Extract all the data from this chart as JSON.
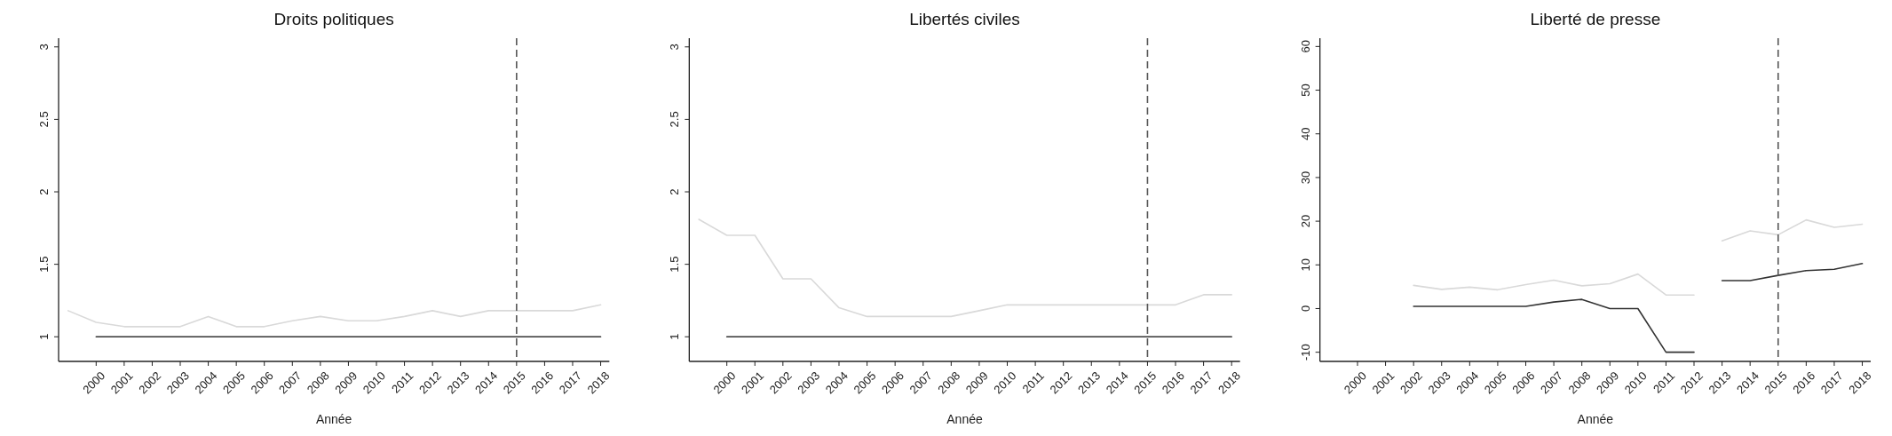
{
  "chart_data": [
    {
      "type": "line",
      "title": "Droits politiques",
      "xlabel": "Année",
      "xlim": [
        1998.66,
        2018.31
      ],
      "xticks": [
        2000,
        2001,
        2002,
        2003,
        2004,
        2005,
        2006,
        2007,
        2008,
        2009,
        2010,
        2011,
        2012,
        2013,
        2014,
        2015,
        2016,
        2017,
        2018
      ],
      "ylim": [
        0.83,
        3.06
      ],
      "yticks": [
        1,
        1.5,
        2,
        2.5,
        3
      ],
      "grid": false,
      "series": [
        {
          "color": "#d9d9d9",
          "x": [
            1999,
            2000,
            2001,
            2002,
            2003,
            2004,
            2005,
            2006,
            2007,
            2008,
            2009,
            2010,
            2011,
            2012,
            2013,
            2014,
            2015,
            2016,
            2017,
            2018
          ],
          "values": [
            1.18,
            1.1,
            1.07,
            1.07,
            1.07,
            1.14,
            1.07,
            1.07,
            1.11,
            1.14,
            1.11,
            1.11,
            1.14,
            1.18,
            1.14,
            1.18,
            1.18,
            1.18,
            1.18,
            1.22
          ]
        },
        {
          "color": "#333333",
          "x": [
            2000,
            2001,
            2002,
            2003,
            2004,
            2005,
            2006,
            2007,
            2008,
            2009,
            2010,
            2011,
            2012,
            2013,
            2014,
            2015,
            2016,
            2017,
            2018
          ],
          "values": [
            1,
            1,
            1,
            1,
            1,
            1,
            1,
            1,
            1,
            1,
            1,
            1,
            1,
            1,
            1,
            1,
            1,
            1,
            1
          ]
        }
      ],
      "ref_lines": [
        {
          "axis": "x",
          "value": 2015,
          "color": "#555555",
          "line_style": "dashed"
        }
      ]
    },
    {
      "type": "line",
      "title": "Libertés civiles",
      "xlabel": "Année",
      "xlim": [
        1998.66,
        2018.3
      ],
      "xticks": [
        2000,
        2001,
        2002,
        2003,
        2004,
        2005,
        2006,
        2007,
        2008,
        2009,
        2010,
        2011,
        2012,
        2013,
        2014,
        2015,
        2016,
        2017,
        2018
      ],
      "ylim": [
        0.83,
        3.06
      ],
      "yticks": [
        1,
        1.5,
        2,
        2.5,
        3
      ],
      "grid": false,
      "series": [
        {
          "color": "#d9d9d9",
          "x": [
            1999,
            2000,
            2001,
            2002,
            2003,
            2004,
            2005,
            2006,
            2007,
            2008,
            2009,
            2010,
            2011,
            2012,
            2013,
            2014,
            2015,
            2016,
            2017,
            2018
          ],
          "values": [
            1.81,
            1.7,
            1.7,
            1.4,
            1.4,
            1.2,
            1.14,
            1.14,
            1.14,
            1.14,
            1.18,
            1.22,
            1.22,
            1.22,
            1.22,
            1.22,
            1.22,
            1.22,
            1.29,
            1.29
          ]
        },
        {
          "color": "#333333",
          "x": [
            2000,
            2001,
            2002,
            2003,
            2004,
            2005,
            2006,
            2007,
            2008,
            2009,
            2010,
            2011,
            2012,
            2013,
            2014,
            2015,
            2016,
            2017,
            2018
          ],
          "values": [
            1,
            1,
            1,
            1,
            1,
            1,
            1,
            1,
            1,
            1,
            1,
            1,
            1,
            1,
            1,
            1,
            1,
            1,
            1
          ]
        }
      ],
      "ref_lines": [
        {
          "axis": "x",
          "value": 2015,
          "color": "#555555",
          "line_style": "dashed"
        }
      ]
    },
    {
      "type": "line",
      "title": "Liberté de presse",
      "xlabel": "Année",
      "xlim": [
        1998.66,
        2018.3
      ],
      "xticks": [
        2000,
        2001,
        2002,
        2003,
        2004,
        2005,
        2006,
        2007,
        2008,
        2009,
        2010,
        2011,
        2012,
        2013,
        2014,
        2015,
        2016,
        2017,
        2018
      ],
      "ylim": [
        -12.1,
        61.9
      ],
      "yticks": [
        -10,
        0,
        10,
        20,
        30,
        40,
        50,
        60
      ],
      "grid": false,
      "series": [
        {
          "color": "#d9d9d9",
          "x": [
            2002,
            2003,
            2004,
            2005,
            2006,
            2007,
            2008,
            2009,
            2010,
            2011,
            2012,
            2012.5,
            2013,
            2014,
            2015,
            2016,
            2017,
            2018
          ],
          "values": [
            5.3,
            4.4,
            4.9,
            4.3,
            5.5,
            6.5,
            5.2,
            5.7,
            7.9,
            3.1,
            3.1,
            null,
            15.5,
            17.8,
            16.9,
            20.3,
            18.6,
            19.3
          ]
        },
        {
          "color": "#333333",
          "x": [
            2002,
            2003,
            2004,
            2005,
            2006,
            2007,
            2008,
            2009,
            2010,
            2011,
            2012,
            2012.5,
            2013,
            2014,
            2015,
            2016,
            2017,
            2018
          ],
          "values": [
            0.5,
            0.5,
            0.5,
            0.5,
            0.5,
            1.5,
            2.1,
            0,
            0,
            -10,
            -10,
            null,
            6.4,
            6.4,
            7.6,
            8.7,
            9.0,
            10.3
          ]
        }
      ],
      "ref_lines": [
        {
          "axis": "x",
          "value": 2015,
          "color": "#555555",
          "line_style": "dashed"
        }
      ]
    }
  ]
}
